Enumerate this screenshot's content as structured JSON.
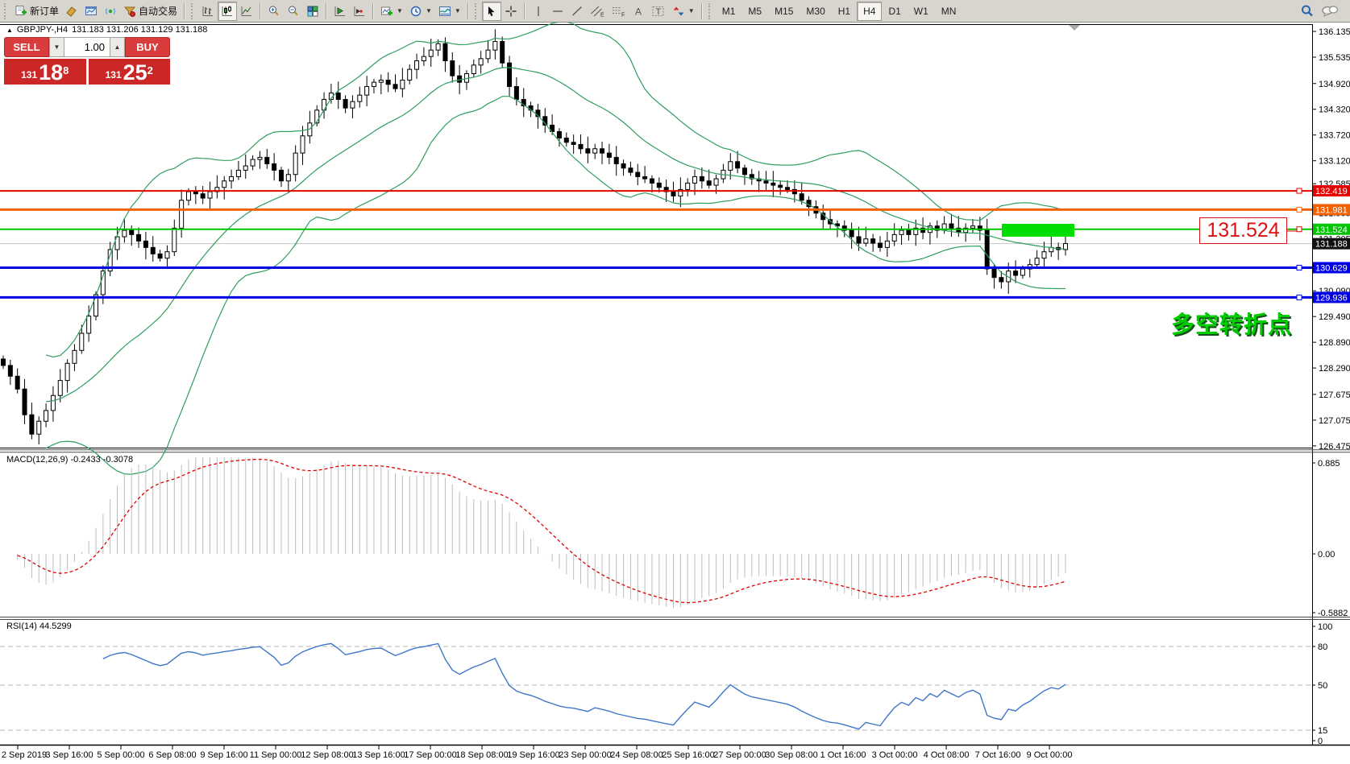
{
  "toolbar": {
    "new_order_label": "新订单",
    "auto_trading_label": "自动交易",
    "timeframes": [
      "M1",
      "M5",
      "M15",
      "M30",
      "H1",
      "H4",
      "D1",
      "W1",
      "MN"
    ],
    "selected_timeframe": "H4",
    "icon_letters": {
      "channel": "E",
      "fibo": "F",
      "text": "A",
      "label": "T"
    }
  },
  "chart": {
    "symbol_header": {
      "symbol": "GBPJPY-,H4",
      "ohlc": "131.183 131.206 131.129 131.188"
    },
    "trade_panel": {
      "sell_label": "SELL",
      "buy_label": "BUY",
      "volume": "1.00",
      "sell_price": {
        "prefix": "131",
        "big": "18",
        "sup": "8"
      },
      "buy_price": {
        "prefix": "131",
        "big": "25",
        "sup": "2"
      }
    },
    "annotation": {
      "price_label": "131.524",
      "turning_point_text": "多空转折点"
    },
    "macd_label": "MACD(12,26,9) -0.2433 -0.3078",
    "rsi_label": "RSI(14) 44.5299"
  },
  "chart_data": {
    "type": "candlestick",
    "symbol": "GBPJPY-",
    "timeframe": "H4",
    "last_ohlc": {
      "open": 131.183,
      "high": 131.206,
      "low": 131.129,
      "close": 131.188
    },
    "x_labels": [
      "2 Sep 2019",
      "3 Sep 16:00",
      "5 Sep 00:00",
      "6 Sep 08:00",
      "9 Sep 16:00",
      "11 Sep 00:00",
      "12 Sep 08:00",
      "13 Sep 16:00",
      "17 Sep 00:00",
      "18 Sep 08:00",
      "19 Sep 16:00",
      "23 Sep 00:00",
      "24 Sep 08:00",
      "25 Sep 16:00",
      "27 Sep 00:00",
      "30 Sep 08:00",
      "1 Oct 16:00",
      "3 Oct 00:00",
      "4 Oct 08:00",
      "7 Oct 16:00",
      "9 Oct 00:00"
    ],
    "y_ticks": [
      "136.135",
      "135.535",
      "134.920",
      "134.320",
      "133.720",
      "133.120",
      "132.585",
      "131.905",
      "131.305",
      "130.090",
      "129.490",
      "128.890",
      "128.290",
      "127.675",
      "127.075",
      "126.475"
    ],
    "ylim": [
      126.175,
      136.35
    ],
    "closes": [
      128.35,
      128.1,
      127.8,
      127.2,
      126.75,
      127.05,
      127.3,
      127.65,
      128.0,
      128.4,
      128.7,
      129.1,
      129.5,
      130.0,
      130.55,
      131.05,
      131.35,
      131.5,
      131.4,
      131.25,
      131.1,
      130.95,
      130.85,
      131.0,
      131.55,
      132.2,
      132.4,
      132.35,
      132.25,
      132.4,
      132.5,
      132.65,
      132.75,
      132.9,
      133.0,
      133.15,
      133.2,
      133.05,
      132.9,
      132.65,
      132.8,
      133.3,
      133.7,
      134.0,
      134.3,
      134.55,
      134.7,
      134.55,
      134.35,
      134.5,
      134.65,
      134.85,
      134.95,
      135.0,
      134.9,
      134.8,
      135.0,
      135.25,
      135.45,
      135.55,
      135.7,
      135.85,
      135.45,
      135.1,
      134.95,
      135.15,
      135.35,
      135.5,
      135.7,
      135.9,
      135.4,
      134.85,
      134.55,
      134.4,
      134.3,
      134.15,
      133.95,
      133.8,
      133.65,
      133.55,
      133.5,
      133.4,
      133.3,
      133.4,
      133.3,
      133.2,
      133.05,
      132.95,
      132.85,
      132.75,
      132.7,
      132.6,
      132.5,
      132.4,
      132.3,
      132.45,
      132.6,
      132.75,
      132.65,
      132.55,
      132.7,
      132.9,
      133.1,
      132.95,
      132.8,
      132.7,
      132.65,
      132.6,
      132.55,
      132.5,
      132.45,
      132.35,
      132.2,
      132.05,
      131.9,
      131.75,
      131.65,
      131.6,
      131.5,
      131.35,
      131.2,
      131.3,
      131.2,
      131.1,
      131.25,
      131.4,
      131.5,
      131.4,
      131.55,
      131.45,
      131.6,
      131.5,
      131.65,
      131.55,
      131.45,
      131.55,
      131.6,
      131.5,
      130.6,
      130.4,
      130.3,
      130.55,
      130.45,
      130.6,
      130.7,
      130.85,
      131.0,
      131.1,
      131.05,
      131.19
    ],
    "indicators": {
      "bollinger": {
        "period": 20,
        "deviation": 2,
        "color": "#2f9e5f"
      },
      "macd": {
        "fast": 12,
        "slow": 26,
        "signal": 9,
        "value": -0.2433,
        "signal_value": -0.3078,
        "scale_top": "0.885",
        "scale_zero": "0.00",
        "scale_bottom": "-0.5882"
      },
      "rsi": {
        "period": 14,
        "value": 44.5299,
        "levels": [
          "100",
          "80",
          "50",
          "15",
          "0"
        ]
      }
    },
    "hlines": [
      {
        "price": "132.419",
        "value": 132.419,
        "color": "#e60000",
        "width": 2
      },
      {
        "price": "131.981",
        "value": 131.981,
        "color": "#f26200",
        "width": 3
      },
      {
        "price": "131.524",
        "value": 131.524,
        "color": "#00c400",
        "width": 2
      },
      {
        "price": "130.629",
        "value": 130.629,
        "color": "#0000e6",
        "width": 3
      },
      {
        "price": "129.936",
        "value": 129.936,
        "color": "#0000e6",
        "width": 3
      }
    ],
    "current_price": {
      "price": "131.188",
      "value": 131.188
    },
    "highlight_box": {
      "price": 131.524,
      "color": "#00dd00"
    }
  }
}
